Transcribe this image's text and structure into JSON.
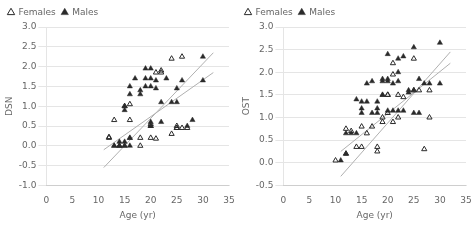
{
  "chart_data": [
    {
      "type": "scatter",
      "xlabel": "Age (yr)",
      "ylabel": "DSN",
      "xlim": [
        0,
        35
      ],
      "xticks": [
        0,
        5,
        10,
        15,
        20,
        25,
        30,
        35
      ],
      "ylim": [
        -1.0,
        3.0
      ],
      "yticks": [
        {
          "value": -1,
          "label": "-1.0"
        },
        -0.5,
        {
          "value": 0,
          "label": "0.0"
        },
        0.5,
        {
          "value": 1,
          "label": "1.0"
        },
        1.5,
        {
          "value": 2,
          "label": "2.0"
        },
        2.5,
        {
          "value": 3,
          "label": "3.0"
        }
      ],
      "grid": true,
      "legend": "upper left",
      "series": [
        {
          "type": "line",
          "color": "#b0b0b0",
          "x": [
            11,
            32
          ],
          "values": [
            -0.1,
            1.85
          ]
        },
        {
          "type": "line",
          "color": "#b0b0b0",
          "x": [
            11,
            32
          ],
          "values": [
            -0.55,
            2.35
          ]
        },
        {
          "name": "Males",
          "type": "scatter",
          "marker": "triangle",
          "color": "#2a2a2a",
          "x": [
            13,
            13,
            14,
            14,
            14,
            14,
            15,
            15,
            15,
            15,
            15,
            16,
            16,
            16,
            16,
            16,
            17,
            18,
            18,
            19,
            19,
            19,
            20,
            20,
            20,
            20,
            20,
            21,
            21,
            22,
            22,
            23,
            24,
            25,
            25,
            26,
            27,
            28,
            30,
            30
          ],
          "values": [
            0.0,
            0.0,
            0.0,
            0.0,
            0.0,
            0.1,
            0.0,
            0.0,
            0.1,
            0.9,
            1.0,
            0.0,
            0.2,
            0.2,
            1.3,
            1.5,
            1.7,
            1.3,
            1.4,
            1.5,
            1.7,
            1.95,
            0.5,
            0.6,
            1.5,
            1.7,
            1.95,
            1.45,
            1.65,
            0.6,
            1.1,
            1.7,
            1.1,
            1.1,
            1.45,
            1.65,
            0.5,
            0.65,
            1.65,
            2.25
          ]
        },
        {
          "name": "Females",
          "type": "scatter",
          "marker": "open-triangle",
          "color": "#2a2a2a",
          "x": [
            12,
            12,
            13,
            15,
            16,
            16,
            18,
            18,
            20,
            20,
            20,
            21,
            21,
            22,
            22,
            24,
            24,
            25,
            25,
            25,
            26,
            26,
            27
          ],
          "values": [
            0.2,
            0.22,
            0.65,
            1.0,
            0.65,
            1.05,
            0.0,
            0.2,
            0.5,
            0.55,
            0.2,
            0.18,
            1.85,
            1.85,
            1.9,
            0.3,
            2.2,
            0.45,
            0.45,
            0.5,
            2.25,
            0.45,
            0.45
          ]
        }
      ]
    },
    {
      "type": "scatter",
      "xlabel": "Age (yr)",
      "ylabel": "OST",
      "xlim": [
        0,
        35
      ],
      "xticks": [
        0,
        5,
        10,
        15,
        20,
        25,
        30,
        35
      ],
      "ylim": [
        -0.5,
        3.0
      ],
      "yticks": [
        -0.5,
        {
          "value": 0,
          "label": "0.0"
        },
        0.5,
        {
          "value": 1,
          "label": "1.0"
        },
        1.5,
        {
          "value": 2,
          "label": "2.0"
        },
        2.5,
        {
          "value": 3,
          "label": "3.0"
        }
      ],
      "grid": true,
      "legend": "upper left",
      "series": [
        {
          "type": "line",
          "color": "#b0b0b0",
          "x": [
            11,
            32
          ],
          "values": [
            0.25,
            2.2
          ]
        },
        {
          "type": "line",
          "color": "#b0b0b0",
          "x": [
            11,
            32
          ],
          "values": [
            -0.3,
            2.45
          ]
        },
        {
          "name": "Males",
          "type": "scatter",
          "marker": "triangle",
          "color": "#2a2a2a",
          "x": [
            11,
            12,
            12,
            13,
            14,
            14,
            15,
            15,
            15,
            16,
            16,
            17,
            17,
            18,
            18,
            18,
            19,
            19,
            19,
            19,
            20,
            20,
            20,
            20,
            21,
            21,
            22,
            22,
            22,
            22,
            23,
            23,
            24,
            24,
            25,
            25,
            25,
            26,
            26,
            27,
            28,
            30,
            30
          ],
          "values": [
            0.05,
            0.2,
            0.65,
            0.65,
            0.65,
            1.4,
            1.1,
            1.2,
            1.35,
            1.35,
            1.75,
            1.1,
            1.8,
            1.1,
            1.2,
            1.35,
            1.5,
            1.5,
            1.8,
            1.85,
            1.15,
            1.8,
            1.85,
            2.4,
            1.15,
            1.75,
            1.15,
            1.8,
            2.0,
            2.3,
            1.15,
            2.35,
            1.55,
            1.6,
            1.1,
            1.6,
            2.55,
            1.1,
            1.85,
            1.75,
            1.75,
            1.75,
            2.65
          ]
        },
        {
          "name": "Females",
          "type": "scatter",
          "marker": "open-triangle",
          "color": "#2a2a2a",
          "x": [
            10,
            12,
            12,
            13,
            14,
            15,
            15,
            16,
            17,
            18,
            18,
            19,
            19,
            20,
            20,
            20,
            21,
            21,
            21,
            22,
            22,
            23,
            25,
            25,
            26,
            27,
            28,
            28
          ],
          "values": [
            0.05,
            0.2,
            0.75,
            0.7,
            0.35,
            0.35,
            0.8,
            0.65,
            0.8,
            0.25,
            0.35,
            0.9,
            1.0,
            1.5,
            1.5,
            1.1,
            1.95,
            2.2,
            0.9,
            1.0,
            1.5,
            1.45,
            1.6,
            2.3,
            1.6,
            0.3,
            1.0,
            1.6
          ]
        }
      ]
    }
  ]
}
